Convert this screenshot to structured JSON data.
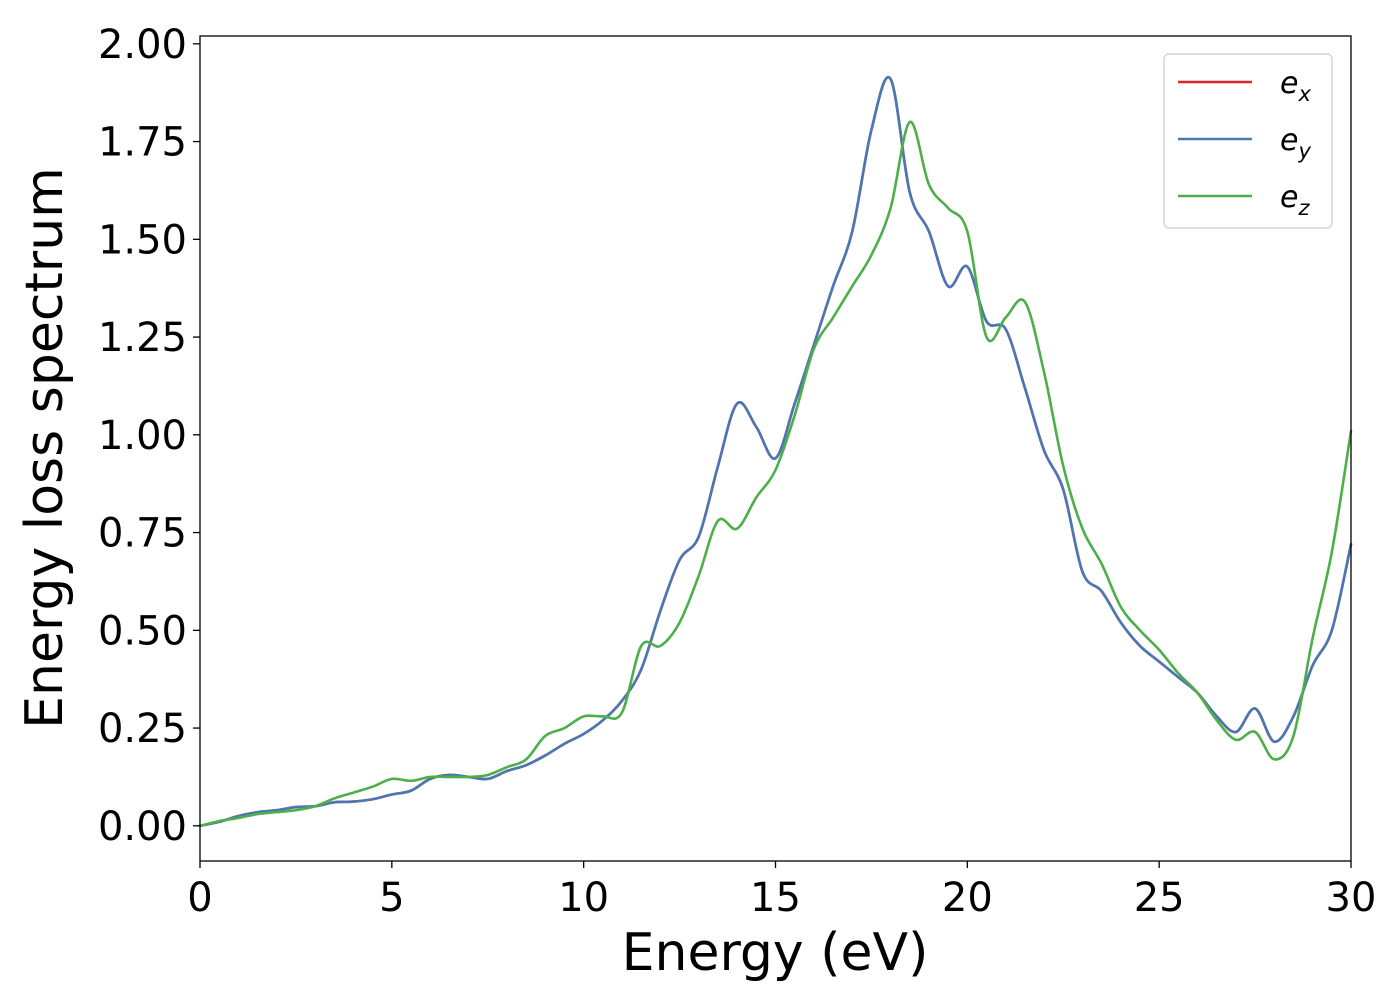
{
  "chart_data": {
    "type": "line",
    "xlabel": "Energy (eV)",
    "ylabel": "Energy loss spectrum",
    "xlim": [
      0,
      30
    ],
    "ylim": [
      -0.09,
      2.02
    ],
    "xticks": [
      0,
      5,
      10,
      15,
      20,
      25,
      30
    ],
    "xtick_labels": [
      "0",
      "5",
      "10",
      "15",
      "20",
      "25",
      "30"
    ],
    "yticks": [
      0,
      0.25,
      0.5,
      0.75,
      1.0,
      1.25,
      1.5,
      1.75,
      2.0
    ],
    "ytick_labels": [
      "0.00",
      "0.25",
      "0.50",
      "0.75",
      "1.00",
      "1.25",
      "1.50",
      "1.75",
      "2.00"
    ],
    "grid": false,
    "legend_position": "top-right",
    "series": [
      {
        "name": "e_x",
        "label_base": "e",
        "label_sub": "x",
        "color": "#d62728",
        "x": [
          0,
          0.5,
          1,
          1.5,
          2,
          2.5,
          3,
          3.5,
          4,
          4.5,
          5,
          5.5,
          6,
          6.5,
          7,
          7.5,
          8,
          8.5,
          9,
          9.5,
          10,
          10.5,
          11,
          11.5,
          12,
          12.5,
          13,
          13.5,
          14,
          14.5,
          15,
          15.5,
          16,
          16.5,
          17,
          17.5,
          18,
          18.5,
          19,
          19.5,
          20,
          20.5,
          21,
          21.5,
          22,
          22.5,
          23,
          23.5,
          24,
          24.5,
          25,
          25.5,
          26,
          26.5,
          27,
          27.5,
          28,
          28.5,
          29,
          29.5,
          30
        ],
        "y": [
          0,
          0.01,
          0.025,
          0.035,
          0.04,
          0.048,
          0.05,
          0.06,
          0.062,
          0.068,
          0.08,
          0.09,
          0.12,
          0.13,
          0.125,
          0.12,
          0.14,
          0.155,
          0.18,
          0.21,
          0.235,
          0.27,
          0.32,
          0.4,
          0.55,
          0.68,
          0.74,
          0.92,
          1.08,
          1.02,
          0.94,
          1.08,
          1.23,
          1.38,
          1.52,
          1.78,
          1.91,
          1.62,
          1.52,
          1.38,
          1.43,
          1.29,
          1.27,
          1.12,
          0.96,
          0.86,
          0.65,
          0.6,
          0.52,
          0.46,
          0.42,
          0.38,
          0.34,
          0.28,
          0.24,
          0.3,
          0.215,
          0.28,
          0.41,
          0.5,
          0.72
        ]
      },
      {
        "name": "e_y",
        "label_base": "e",
        "label_sub": "y",
        "color": "#4a78b5",
        "x": [
          0,
          0.5,
          1,
          1.5,
          2,
          2.5,
          3,
          3.5,
          4,
          4.5,
          5,
          5.5,
          6,
          6.5,
          7,
          7.5,
          8,
          8.5,
          9,
          9.5,
          10,
          10.5,
          11,
          11.5,
          12,
          12.5,
          13,
          13.5,
          14,
          14.5,
          15,
          15.5,
          16,
          16.5,
          17,
          17.5,
          18,
          18.5,
          19,
          19.5,
          20,
          20.5,
          21,
          21.5,
          22,
          22.5,
          23,
          23.5,
          24,
          24.5,
          25,
          25.5,
          26,
          26.5,
          27,
          27.5,
          28,
          28.5,
          29,
          29.5,
          30
        ],
        "y": [
          0,
          0.01,
          0.025,
          0.035,
          0.04,
          0.048,
          0.05,
          0.06,
          0.062,
          0.068,
          0.08,
          0.09,
          0.12,
          0.13,
          0.125,
          0.12,
          0.14,
          0.155,
          0.18,
          0.21,
          0.235,
          0.27,
          0.32,
          0.4,
          0.55,
          0.68,
          0.74,
          0.92,
          1.08,
          1.02,
          0.94,
          1.08,
          1.23,
          1.38,
          1.52,
          1.78,
          1.91,
          1.62,
          1.52,
          1.38,
          1.43,
          1.29,
          1.27,
          1.12,
          0.96,
          0.86,
          0.65,
          0.6,
          0.52,
          0.46,
          0.42,
          0.38,
          0.34,
          0.28,
          0.24,
          0.3,
          0.215,
          0.28,
          0.41,
          0.5,
          0.72
        ]
      },
      {
        "name": "e_z",
        "label_base": "e",
        "label_sub": "z",
        "color": "#4daf4a",
        "x": [
          0,
          0.5,
          1,
          1.5,
          2,
          2.5,
          3,
          3.5,
          4,
          4.5,
          5,
          5.5,
          6,
          6.5,
          7,
          7.5,
          8,
          8.5,
          9,
          9.5,
          10,
          10.5,
          11,
          11.5,
          12,
          12.5,
          13,
          13.5,
          14,
          14.5,
          15,
          15.5,
          16,
          16.5,
          17,
          17.5,
          18,
          18.5,
          19,
          19.5,
          20,
          20.5,
          21,
          21.5,
          22,
          22.5,
          23,
          23.5,
          24,
          24.5,
          25,
          25.5,
          26,
          26.5,
          27,
          27.5,
          28,
          28.5,
          29,
          29.5,
          30
        ],
        "y": [
          0,
          0.012,
          0.02,
          0.03,
          0.035,
          0.04,
          0.05,
          0.07,
          0.085,
          0.1,
          0.12,
          0.115,
          0.125,
          0.125,
          0.125,
          0.13,
          0.15,
          0.17,
          0.23,
          0.25,
          0.28,
          0.28,
          0.29,
          0.46,
          0.46,
          0.52,
          0.64,
          0.78,
          0.76,
          0.84,
          0.91,
          1.05,
          1.22,
          1.3,
          1.38,
          1.46,
          1.58,
          1.8,
          1.64,
          1.58,
          1.52,
          1.25,
          1.3,
          1.34,
          1.16,
          0.92,
          0.76,
          0.67,
          0.56,
          0.5,
          0.45,
          0.39,
          0.34,
          0.27,
          0.22,
          0.24,
          0.17,
          0.23,
          0.48,
          0.7,
          1.01
        ]
      }
    ]
  }
}
